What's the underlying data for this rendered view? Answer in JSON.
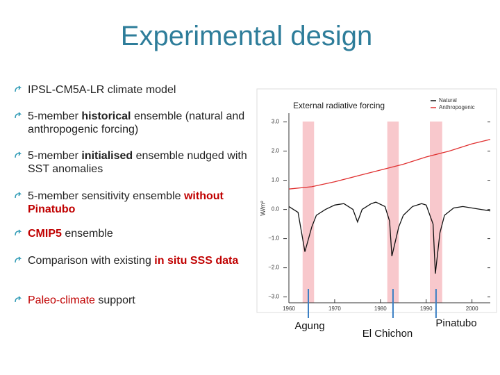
{
  "slide": {
    "title": "Experimental design",
    "bullets": [
      {
        "runs": [
          {
            "text": "IPSL-CM5A-LR climate model"
          }
        ]
      },
      {
        "runs": [
          {
            "text": "5-member "
          },
          {
            "text": "historical",
            "bold": true
          },
          {
            "text": " ensemble (natural and anthropogenic forcing)"
          }
        ]
      },
      {
        "runs": [
          {
            "text": "5-member "
          },
          {
            "text": "initialised",
            "bold": true
          },
          {
            "text": " ensemble nudged with SST anomalies"
          }
        ]
      },
      {
        "runs": [
          {
            "text": "5-member sensitivity ensemble "
          },
          {
            "text": "without Pinatubo",
            "bold": true,
            "color": "#c00000"
          }
        ]
      },
      {
        "runs": [
          {
            "text": "CMIP5",
            "bold": true,
            "color": "#c00000"
          },
          {
            "text": " ensemble"
          }
        ]
      },
      {
        "runs": [
          {
            "text": "Comparison with existing "
          },
          {
            "text": "in situ SSS data",
            "bold": true,
            "color": "#c00000"
          }
        ]
      },
      {
        "runs": [
          {
            "text": "Paleo-climate",
            "color": "#c00000"
          },
          {
            "text": " support"
          }
        ]
      }
    ]
  },
  "chart_data": {
    "type": "line",
    "title": "External radiative forcing",
    "y_label": "W/m²",
    "xlim": [
      1960,
      2004
    ],
    "xticks": [
      1960,
      1970,
      1980,
      1990,
      2000
    ],
    "ylim": [
      -3.2,
      3.3
    ],
    "yticks": [
      {
        "value": 3,
        "label": "3.0"
      },
      {
        "value": 2,
        "label": "2.0"
      },
      {
        "value": 1,
        "label": "1.0"
      },
      {
        "value": 0,
        "label": "0.0"
      },
      {
        "value": -1,
        "label": "−1.0"
      },
      {
        "value": -2,
        "label": "−2.0"
      },
      {
        "value": -3,
        "label": "−3.0"
      }
    ],
    "series": [
      {
        "name": "Natural",
        "color": "#111111",
        "x": [
          1960,
          1962,
          1963.5,
          1965,
          1966,
          1968,
          1970,
          1972,
          1974,
          1975,
          1976,
          1978,
          1979,
          1981,
          1982,
          1982.5,
          1984,
          1985,
          1987,
          1989,
          1990,
          1991.5,
          1992,
          1993,
          1994,
          1996,
          1998,
          2000,
          2002,
          2004
        ],
        "values": [
          0.1,
          -0.1,
          -1.45,
          -0.6,
          -0.2,
          0.0,
          0.15,
          0.2,
          0.0,
          -0.43,
          0.0,
          0.2,
          0.25,
          0.1,
          -0.4,
          -1.6,
          -0.6,
          -0.2,
          0.1,
          0.2,
          0.15,
          -0.5,
          -2.2,
          -0.8,
          -0.2,
          0.05,
          0.1,
          0.05,
          0.0,
          -0.05
        ]
      },
      {
        "name": "Anthropogenic",
        "color": "#e03030",
        "x": [
          1960,
          1965,
          1970,
          1975,
          1980,
          1985,
          1990,
          1995,
          2000,
          2004
        ],
        "values": [
          0.7,
          0.78,
          0.95,
          1.15,
          1.35,
          1.55,
          1.8,
          2.0,
          2.25,
          2.4
        ]
      }
    ],
    "shaded_periods": [
      {
        "start": 1963,
        "end": 1965.5,
        "label": "Agung"
      },
      {
        "start": 1981.5,
        "end": 1984,
        "label": "El Chichon"
      },
      {
        "start": 1990.8,
        "end": 1993.5,
        "label": "Pinatubo"
      }
    ],
    "shade_color": "#f8c8cc",
    "grid": false
  }
}
